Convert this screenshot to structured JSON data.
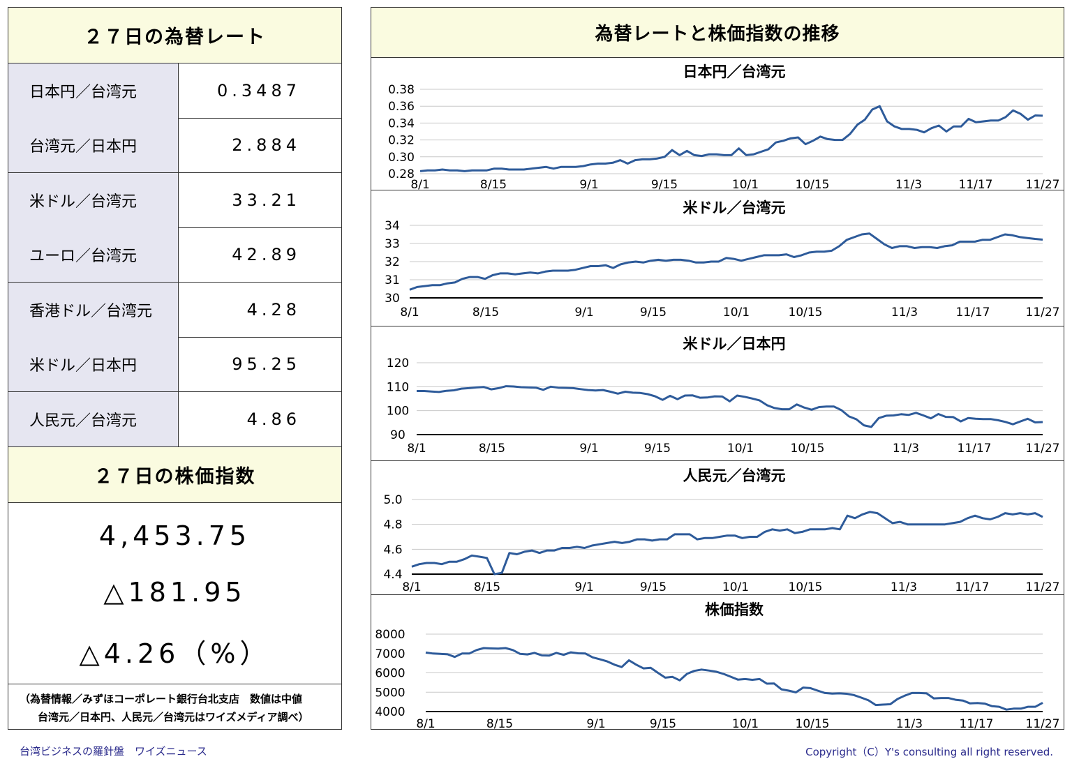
{
  "left": {
    "rates_title": "２７日の為替レート",
    "rates": [
      {
        "label": "日本円／台湾元",
        "value": "0.3487"
      },
      {
        "label": "台湾元／日本円",
        "value": "2.884"
      },
      {
        "label": "米ドル／台湾元",
        "value": "33.21"
      },
      {
        "label": "ユーロ／台湾元",
        "value": "42.89"
      },
      {
        "label": "香港ドル／台湾元",
        "value": "4.28"
      },
      {
        "label": "米ドル／日本円",
        "value": "95.25"
      },
      {
        "label": "人民元／台湾元",
        "value": "4.86"
      }
    ],
    "stock_title": "２７日の株価指数",
    "stock_index": "4,453.75",
    "stock_change": "△181.95",
    "stock_change_pct": "△4.26（%）",
    "note_line1": "（為替情報／みずほコーポレート銀行台北支店　数値は中値",
    "note_line2": "台湾元／日本円、人民元／台湾元はワイズメディア調べ）"
  },
  "right_title": "為替レートと株価指数の推移",
  "footer": {
    "left": "台湾ビジネスの羅針盤　ワイズニュース",
    "right": "Copyright（C）Y's consulting all right reserved."
  },
  "colors": {
    "line": "#2e5b9a",
    "header_bg": "#fafbe0",
    "label_bg": "#e6e6f1",
    "footer_text": "#2b2b8c"
  },
  "chart_data": [
    {
      "type": "line",
      "title": "日本円／台湾元",
      "x_tick_labels": [
        "8/1",
        "8/15",
        "9/1",
        "9/15",
        "10/1",
        "10/15",
        "11/3",
        "11/17",
        "11/27"
      ],
      "y_tick_labels": [
        "0.28",
        "0.30",
        "0.32",
        "0.34",
        "0.36",
        "0.38"
      ],
      "ylim": [
        0.28,
        0.38
      ],
      "grid": true,
      "series": [
        {
          "values": [
            0.283,
            0.284,
            0.284,
            0.285,
            0.284,
            0.284,
            0.283,
            0.284,
            0.284,
            0.284,
            0.286,
            0.286,
            0.285,
            0.285,
            0.285,
            0.286,
            0.287,
            0.288,
            0.286,
            0.288,
            0.288,
            0.288,
            0.289,
            0.291,
            0.292,
            0.292,
            0.293,
            0.296,
            0.292,
            0.296,
            0.297,
            0.297,
            0.298,
            0.3,
            0.308,
            0.302,
            0.307,
            0.302,
            0.301,
            0.303,
            0.303,
            0.302,
            0.302,
            0.31,
            0.302,
            0.303,
            0.306,
            0.309,
            0.317,
            0.319,
            0.322,
            0.323,
            0.315,
            0.319,
            0.324,
            0.321,
            0.32,
            0.32,
            0.327,
            0.338,
            0.344,
            0.356,
            0.36,
            0.342,
            0.336,
            0.333,
            0.333,
            0.332,
            0.329,
            0.334,
            0.337,
            0.33,
            0.336,
            0.336,
            0.345,
            0.341,
            0.342,
            0.343,
            0.343,
            0.347,
            0.355,
            0.351,
            0.344,
            0.349,
            0.3487
          ]
        }
      ]
    },
    {
      "type": "line",
      "title": "米ドル／台湾元",
      "x_tick_labels": [
        "8/1",
        "8/15",
        "9/1",
        "9/15",
        "10/1",
        "10/15",
        "11/3",
        "11/17",
        "11/27"
      ],
      "y_tick_labels": [
        "30",
        "31",
        "32",
        "33",
        "34"
      ],
      "ylim": [
        30,
        34
      ],
      "grid": true,
      "series": [
        {
          "values": [
            30.45,
            30.6,
            30.65,
            30.7,
            30.7,
            30.8,
            30.85,
            31.05,
            31.15,
            31.15,
            31.05,
            31.25,
            31.35,
            31.35,
            31.3,
            31.35,
            31.4,
            31.35,
            31.45,
            31.5,
            31.5,
            31.5,
            31.55,
            31.65,
            31.75,
            31.75,
            31.8,
            31.65,
            31.85,
            31.95,
            32.0,
            31.95,
            32.05,
            32.1,
            32.05,
            32.1,
            32.1,
            32.05,
            31.95,
            31.95,
            32.0,
            32.0,
            32.2,
            32.15,
            32.05,
            32.15,
            32.25,
            32.35,
            32.35,
            32.35,
            32.4,
            32.25,
            32.35,
            32.5,
            32.55,
            32.55,
            32.6,
            32.85,
            33.2,
            33.35,
            33.5,
            33.55,
            33.25,
            32.95,
            32.75,
            32.85,
            32.85,
            32.75,
            32.8,
            32.8,
            32.75,
            32.85,
            32.9,
            33.1,
            33.1,
            33.1,
            33.2,
            33.2,
            33.35,
            33.5,
            33.45,
            33.35,
            33.3,
            33.25,
            33.21
          ]
        }
      ]
    },
    {
      "type": "line",
      "title": "米ドル／日本円",
      "x_tick_labels": [
        "8/1",
        "8/15",
        "9/1",
        "9/15",
        "10/1",
        "10/15",
        "11/3",
        "11/17",
        "11/27"
      ],
      "y_tick_labels": [
        "90",
        "100",
        "110",
        "120"
      ],
      "ylim": [
        90,
        120
      ],
      "grid": true,
      "series": [
        {
          "values": [
            108.2,
            108.2,
            108.0,
            107.8,
            108.3,
            108.5,
            109.2,
            109.4,
            109.7,
            109.9,
            108.9,
            109.4,
            110.2,
            110.1,
            109.8,
            109.7,
            109.6,
            108.7,
            110.0,
            109.6,
            109.5,
            109.4,
            109.0,
            108.6,
            108.4,
            108.6,
            107.9,
            107.1,
            107.9,
            107.5,
            107.4,
            106.9,
            106.0,
            104.5,
            106.2,
            104.8,
            106.3,
            106.4,
            105.4,
            105.5,
            106.0,
            105.9,
            103.9,
            106.3,
            105.8,
            105.1,
            104.3,
            102.3,
            101.1,
            100.6,
            100.6,
            102.6,
            101.3,
            100.4,
            101.5,
            101.7,
            101.7,
            100.2,
            97.6,
            96.4,
            93.9,
            93.2,
            96.9,
            97.9,
            98.0,
            98.5,
            98.2,
            99.1,
            98.0,
            96.8,
            98.6,
            97.4,
            97.3,
            95.5,
            96.9,
            96.6,
            96.5,
            96.5,
            96.0,
            95.3,
            94.3,
            95.5,
            96.6,
            95.1,
            95.25
          ]
        }
      ]
    },
    {
      "type": "line",
      "title": "人民元／台湾元",
      "x_tick_labels": [
        "8/1",
        "8/15",
        "9/1",
        "9/15",
        "10/1",
        "10/15",
        "11/3",
        "11/17",
        "11/27"
      ],
      "y_tick_labels": [
        "4.4",
        "4.6",
        "4.8",
        "5.0"
      ],
      "ylim": [
        4.4,
        5.0
      ],
      "grid": true,
      "series": [
        {
          "values": [
            4.46,
            4.48,
            4.49,
            4.49,
            4.48,
            4.5,
            4.5,
            4.52,
            4.55,
            4.54,
            4.53,
            4.4,
            4.41,
            4.57,
            4.56,
            4.58,
            4.59,
            4.57,
            4.59,
            4.59,
            4.61,
            4.61,
            4.62,
            4.61,
            4.63,
            4.64,
            4.65,
            4.66,
            4.65,
            4.66,
            4.68,
            4.68,
            4.67,
            4.68,
            4.68,
            4.72,
            4.72,
            4.72,
            4.68,
            4.69,
            4.69,
            4.7,
            4.71,
            4.71,
            4.69,
            4.7,
            4.7,
            4.74,
            4.76,
            4.75,
            4.76,
            4.73,
            4.74,
            4.76,
            4.76,
            4.76,
            4.77,
            4.76,
            4.87,
            4.85,
            4.88,
            4.9,
            4.89,
            4.85,
            4.81,
            4.82,
            4.8,
            4.8,
            4.8,
            4.8,
            4.8,
            4.8,
            4.81,
            4.82,
            4.85,
            4.87,
            4.85,
            4.84,
            4.86,
            4.89,
            4.88,
            4.89,
            4.88,
            4.89,
            4.86
          ]
        }
      ]
    },
    {
      "type": "line",
      "title": "株価指数",
      "x_tick_labels": [
        "8/1",
        "8/15",
        "9/1",
        "9/15",
        "10/1",
        "10/15",
        "11/3",
        "11/17",
        "11/27"
      ],
      "y_tick_labels": [
        "4000",
        "5000",
        "6000",
        "7000",
        "8000"
      ],
      "ylim": [
        4000,
        8000
      ],
      "grid": true,
      "series": [
        {
          "values": [
            7050,
            7000,
            6980,
            6960,
            6820,
            7000,
            7000,
            7180,
            7280,
            7260,
            7250,
            7280,
            7180,
            6980,
            6950,
            7030,
            6900,
            6890,
            7030,
            6930,
            7060,
            7010,
            7000,
            6800,
            6700,
            6590,
            6420,
            6300,
            6650,
            6420,
            6230,
            6260,
            6000,
            5750,
            5790,
            5610,
            5950,
            6100,
            6170,
            6120,
            6060,
            5950,
            5800,
            5650,
            5680,
            5640,
            5680,
            5440,
            5450,
            5150,
            5080,
            4990,
            5240,
            5210,
            5080,
            4960,
            4930,
            4940,
            4920,
            4850,
            4720,
            4580,
            4340,
            4360,
            4380,
            4650,
            4820,
            4960,
            4960,
            4940,
            4680,
            4700,
            4700,
            4610,
            4570,
            4420,
            4440,
            4410,
            4280,
            4250,
            4100,
            4150,
            4150,
            4250,
            4250,
            4453.75
          ]
        }
      ]
    }
  ]
}
